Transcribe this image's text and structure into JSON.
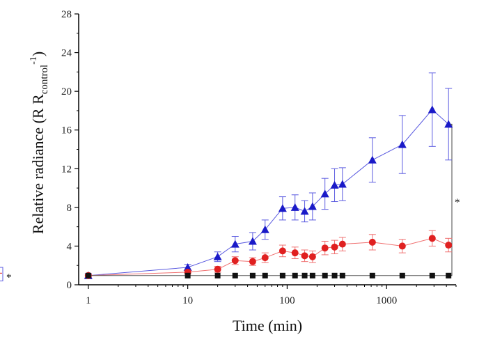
{
  "chart_data": {
    "type": "line",
    "xlabel": "Time (min)",
    "ylabel": "Relative radiance (R R",
    "ylabel_sub": "control",
    "ylabel_sup": "-1",
    "ylabel_close": ")",
    "xscale": "log",
    "xlim": [
      0.8,
      5000
    ],
    "ylim": [
      0,
      28
    ],
    "x_ticks": [
      1,
      10,
      100,
      1000
    ],
    "y_ticks": [
      0,
      4,
      8,
      12,
      16,
      20,
      24,
      28
    ],
    "grid": false,
    "legend": "none",
    "significance_markers": [
      {
        "text": "*",
        "between": [
          "blue-triangle",
          "black-square"
        ]
      },
      {
        "text": "*",
        "between": [
          "red-circle",
          "black-square"
        ]
      }
    ],
    "series": [
      {
        "marker": "triangle",
        "color": "#1a1ac8",
        "line_color": "#5a5ae0",
        "x": [
          1,
          10,
          20,
          30,
          45,
          60,
          90,
          120,
          150,
          180,
          240,
          300,
          360,
          720,
          1440,
          2880,
          4200
        ],
        "y": [
          0.95,
          1.8,
          2.9,
          4.2,
          4.5,
          5.7,
          7.9,
          8.0,
          7.6,
          8.1,
          9.4,
          10.3,
          10.4,
          12.9,
          14.5,
          18.1,
          16.6
        ],
        "err": [
          0.2,
          0.3,
          0.5,
          0.8,
          0.9,
          1.0,
          1.2,
          1.3,
          1.1,
          1.4,
          1.6,
          1.7,
          1.7,
          2.3,
          3.0,
          3.8,
          3.7
        ]
      },
      {
        "marker": "circle",
        "color": "#e02020",
        "line_color": "#f07070",
        "x": [
          1,
          10,
          20,
          30,
          45,
          60,
          90,
          120,
          150,
          180,
          240,
          300,
          360,
          720,
          1440,
          2880,
          4200
        ],
        "y": [
          0.95,
          1.3,
          1.6,
          2.5,
          2.4,
          2.8,
          3.5,
          3.3,
          3.0,
          2.9,
          3.8,
          3.9,
          4.2,
          4.4,
          4.0,
          4.8,
          4.1
        ],
        "err": [
          0.15,
          0.2,
          0.3,
          0.4,
          0.4,
          0.5,
          0.6,
          0.6,
          0.6,
          0.6,
          0.7,
          0.7,
          0.7,
          0.8,
          0.7,
          0.8,
          0.7
        ]
      },
      {
        "marker": "square",
        "color": "#111111",
        "line_color": "#555555",
        "x": [
          1,
          10,
          20,
          30,
          45,
          60,
          90,
          120,
          150,
          180,
          240,
          300,
          360,
          720,
          1440,
          2880,
          4200
        ],
        "y": [
          0.95,
          0.95,
          0.95,
          0.95,
          0.95,
          0.95,
          0.95,
          0.95,
          0.95,
          0.95,
          0.95,
          0.95,
          0.95,
          0.95,
          0.95,
          0.95,
          0.95
        ],
        "err": [
          0,
          0,
          0,
          0,
          0,
          0,
          0,
          0,
          0,
          0,
          0,
          0,
          0,
          0,
          0,
          0,
          0
        ]
      }
    ]
  }
}
